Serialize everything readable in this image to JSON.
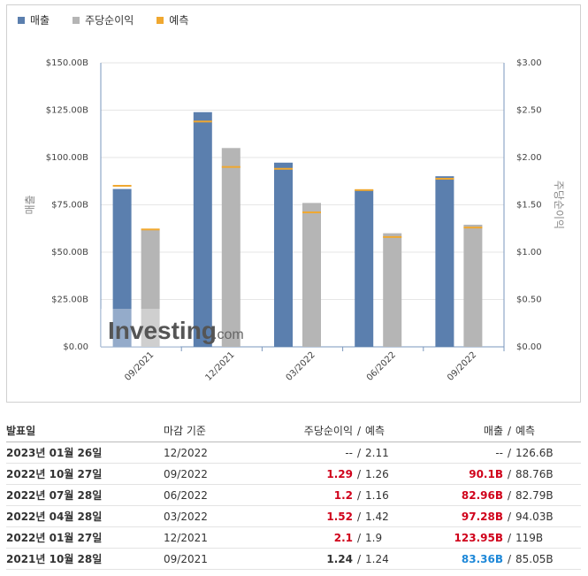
{
  "legend": {
    "revenue": "매출",
    "eps": "주당순이익",
    "forecast": "예측"
  },
  "colors": {
    "revenue": "#5b7fae",
    "eps": "#b5b5b5",
    "forecast": "#f0a830",
    "beat": "#d0021b",
    "miss": "#1e88d8"
  },
  "watermark": {
    "brand": "Investing",
    "suffix": ".com"
  },
  "chart_data": {
    "type": "bar",
    "categories": [
      "09/2021",
      "12/2021",
      "03/2022",
      "06/2022",
      "09/2022"
    ],
    "series": [
      {
        "name": "매출",
        "axis": "left",
        "values": [
          83.36,
          123.95,
          97.28,
          82.96,
          90.1
        ],
        "forecast": [
          85.05,
          119,
          94.03,
          82.79,
          88.76
        ]
      },
      {
        "name": "주당순이익",
        "axis": "right",
        "values": [
          1.24,
          2.1,
          1.52,
          1.2,
          1.29
        ],
        "forecast": [
          1.24,
          1.9,
          1.42,
          1.16,
          1.26
        ]
      }
    ],
    "y_left": {
      "label": "매출",
      "min": 0,
      "max": 150,
      "ticks": [
        "$0.00",
        "$25.00B",
        "$50.00B",
        "$75.00B",
        "$100.00B",
        "$125.00B",
        "$150.00B"
      ]
    },
    "y_right": {
      "label": "주당순이익",
      "min": 0,
      "max": 3,
      "ticks": [
        "$0.00",
        "$0.50",
        "$1.00",
        "$1.50",
        "$2.00",
        "$2.50",
        "$3.00"
      ]
    },
    "grid": true,
    "legend_position": "top-left"
  },
  "table": {
    "headers": {
      "date": "발표일",
      "period": "마감 기준",
      "eps": "주당순이익",
      "eps_forecast": "예측",
      "revenue": "매출",
      "revenue_forecast": "예측",
      "separator": "/"
    },
    "rows": [
      {
        "date": "2023년 01월 26일",
        "period": "12/2022",
        "eps": "--",
        "eps_status": "none",
        "eps_forecast": "2.11",
        "revenue": "--",
        "revenue_status": "none",
        "revenue_forecast": "126.6B"
      },
      {
        "date": "2022년 10월 27일",
        "period": "09/2022",
        "eps": "1.29",
        "eps_status": "beat",
        "eps_forecast": "1.26",
        "revenue": "90.1B",
        "revenue_status": "beat",
        "revenue_forecast": "88.76B"
      },
      {
        "date": "2022년 07월 28일",
        "period": "06/2022",
        "eps": "1.2",
        "eps_status": "beat",
        "eps_forecast": "1.16",
        "revenue": "82.96B",
        "revenue_status": "beat",
        "revenue_forecast": "82.79B"
      },
      {
        "date": "2022년 04월 28일",
        "period": "03/2022",
        "eps": "1.52",
        "eps_status": "beat",
        "eps_forecast": "1.42",
        "revenue": "97.28B",
        "revenue_status": "beat",
        "revenue_forecast": "94.03B"
      },
      {
        "date": "2022년 01월 27일",
        "period": "12/2021",
        "eps": "2.1",
        "eps_status": "beat",
        "eps_forecast": "1.9",
        "revenue": "123.95B",
        "revenue_status": "beat",
        "revenue_forecast": "119B"
      },
      {
        "date": "2021년 10월 28일",
        "period": "09/2021",
        "eps": "1.24",
        "eps_status": "equal",
        "eps_forecast": "1.24",
        "revenue": "83.36B",
        "revenue_status": "miss",
        "revenue_forecast": "85.05B"
      }
    ]
  }
}
